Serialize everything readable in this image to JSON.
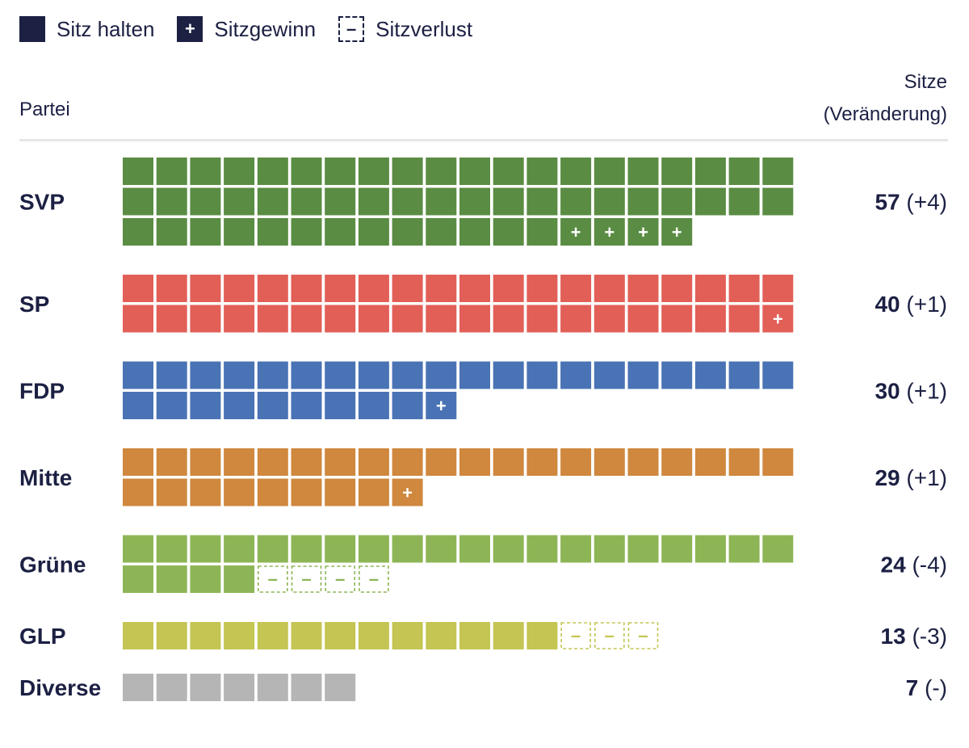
{
  "legend": {
    "hold_label": "Sitz halten",
    "gain_label": "Sitzgewinn",
    "gain_symbol": "+",
    "loss_label": "Sitzverlust",
    "loss_symbol": "–"
  },
  "header": {
    "party_label": "Partei",
    "seats_label_line1": "Sitze",
    "seats_label_line2": "(Veränderung)"
  },
  "chart_data": {
    "type": "waffle",
    "seats_per_row": 20,
    "series": [
      {
        "party": "SVP",
        "seats": 57,
        "change": 4,
        "change_label": "(+4)",
        "color": "#5a8c43"
      },
      {
        "party": "SP",
        "seats": 40,
        "change": 1,
        "change_label": "(+1)",
        "color": "#e15f57"
      },
      {
        "party": "FDP",
        "seats": 30,
        "change": 1,
        "change_label": "(+1)",
        "color": "#4a73b5"
      },
      {
        "party": "Mitte",
        "seats": 29,
        "change": 1,
        "change_label": "(+1)",
        "color": "#cf883e"
      },
      {
        "party": "Grüne",
        "seats": 24,
        "change": -4,
        "change_label": "(-4)",
        "color": "#8db556"
      },
      {
        "party": "GLP",
        "seats": 13,
        "change": -3,
        "change_label": "(-3)",
        "color": "#c4c553"
      },
      {
        "party": "Diverse",
        "seats": 7,
        "change": 0,
        "change_label": "(-)",
        "color": "#b5b5b5"
      }
    ]
  }
}
